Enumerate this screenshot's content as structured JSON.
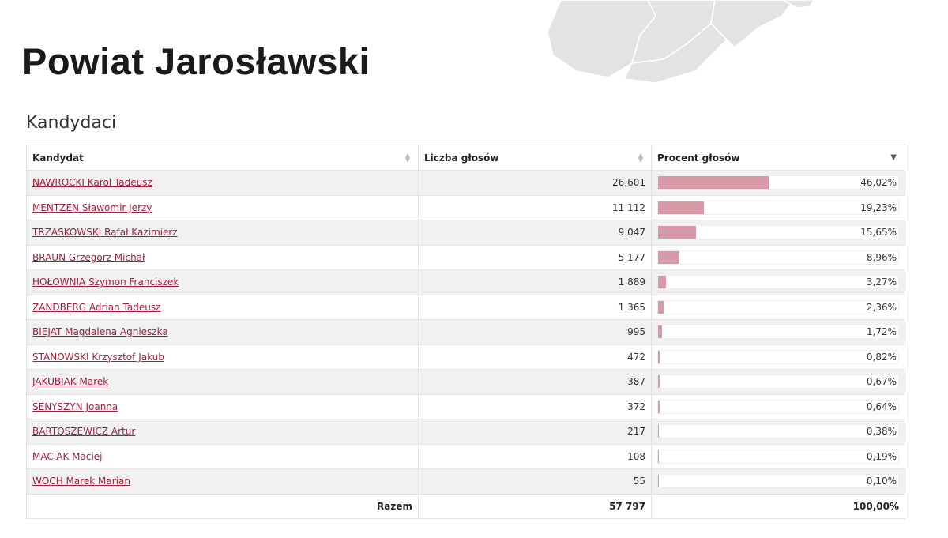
{
  "page": {
    "title": "Powiat Jarosławski",
    "section_title": "Kandydaci"
  },
  "table": {
    "headers": {
      "candidate": "Kandydat",
      "votes": "Liczba głosów",
      "percent": "Procent głosów"
    },
    "sort": {
      "column": "percent",
      "direction": "desc"
    },
    "rows": [
      {
        "name": "NAWROCKI Karol Tadeusz",
        "votes": "26 601",
        "percent": "46,02%",
        "share": 0.4602
      },
      {
        "name": "MENTZEN Sławomir Jerzy",
        "votes": "11 112",
        "percent": "19,23%",
        "share": 0.1923
      },
      {
        "name": "TRZASKOWSKI Rafał Kazimierz",
        "votes": "9 047",
        "percent": "15,65%",
        "share": 0.1565
      },
      {
        "name": "BRAUN Grzegorz Michał",
        "votes": "5 177",
        "percent": "8,96%",
        "share": 0.0896
      },
      {
        "name": "HOŁOWNIA Szymon Franciszek",
        "votes": "1 889",
        "percent": "3,27%",
        "share": 0.0327
      },
      {
        "name": "ZANDBERG Adrian Tadeusz",
        "votes": "1 365",
        "percent": "2,36%",
        "share": 0.0236
      },
      {
        "name": "BIEJAT Magdalena Agnieszka",
        "votes": "995",
        "percent": "1,72%",
        "share": 0.0172
      },
      {
        "name": "STANOWSKI Krzysztof Jakub",
        "votes": "472",
        "percent": "0,82%",
        "share": 0.0082
      },
      {
        "name": "JAKUBIAK Marek",
        "votes": "387",
        "percent": "0,67%",
        "share": 0.0067
      },
      {
        "name": "SENYSZYN Joanna",
        "votes": "372",
        "percent": "0,64%",
        "share": 0.0064
      },
      {
        "name": "BARTOSZEWICZ Artur",
        "votes": "217",
        "percent": "0,38%",
        "share": 0.0038
      },
      {
        "name": "MACIAK Maciej",
        "votes": "108",
        "percent": "0,19%",
        "share": 0.0019
      },
      {
        "name": "WOCH Marek Marian",
        "votes": "55",
        "percent": "0,10%",
        "share": 0.001
      }
    ],
    "footer": {
      "label": "Razem",
      "votes": "57 797",
      "percent": "100,00%"
    }
  },
  "colors": {
    "link": "#a0203a",
    "bar": "#d99aa8",
    "row_stripe": "#f1f1f1",
    "map": "#e3e3e3"
  },
  "icons": {
    "sort": "sort-both-icon",
    "sort_active": "sort-desc-icon",
    "map": "county-map-graphic"
  }
}
